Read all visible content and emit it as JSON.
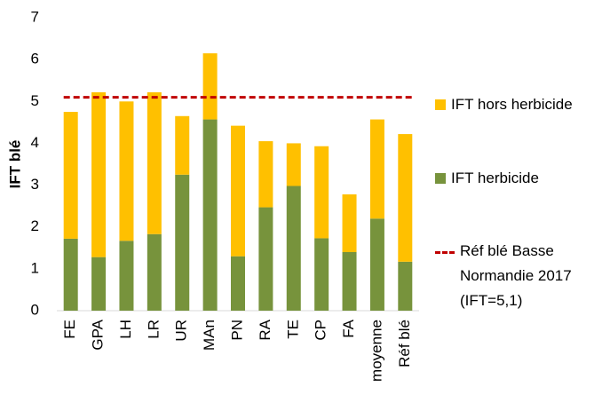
{
  "chart_data": {
    "type": "stacked_bar",
    "y_label": "IFT blé",
    "categories": [
      "FE",
      "GPA",
      "LH",
      "LR",
      "UR",
      "MAn",
      "PN",
      "RA",
      "TE",
      "CP",
      "FA",
      "moyenne",
      "Réf blé"
    ],
    "series": [
      {
        "name": "IFT herbicide",
        "color": "#77933c",
        "values": [
          1.72,
          1.28,
          1.67,
          1.83,
          3.25,
          4.57,
          1.3,
          2.47,
          2.98,
          1.73,
          1.4,
          2.2,
          1.17
        ]
      },
      {
        "name": "IFT hors herbicide",
        "color": "#ffc000",
        "values": [
          3.03,
          3.94,
          3.33,
          3.39,
          1.4,
          1.58,
          3.12,
          1.58,
          1.02,
          2.2,
          1.38,
          2.37,
          3.05
        ]
      }
    ],
    "reference": {
      "name": "Réf blé Basse Normandie 2017 (IFT=5,1)",
      "value": 5.1,
      "color": "#c00000"
    },
    "ylim": [
      0,
      7
    ],
    "yticks": [
      0,
      1,
      2,
      3,
      4,
      5,
      6,
      7
    ],
    "grid": false
  }
}
